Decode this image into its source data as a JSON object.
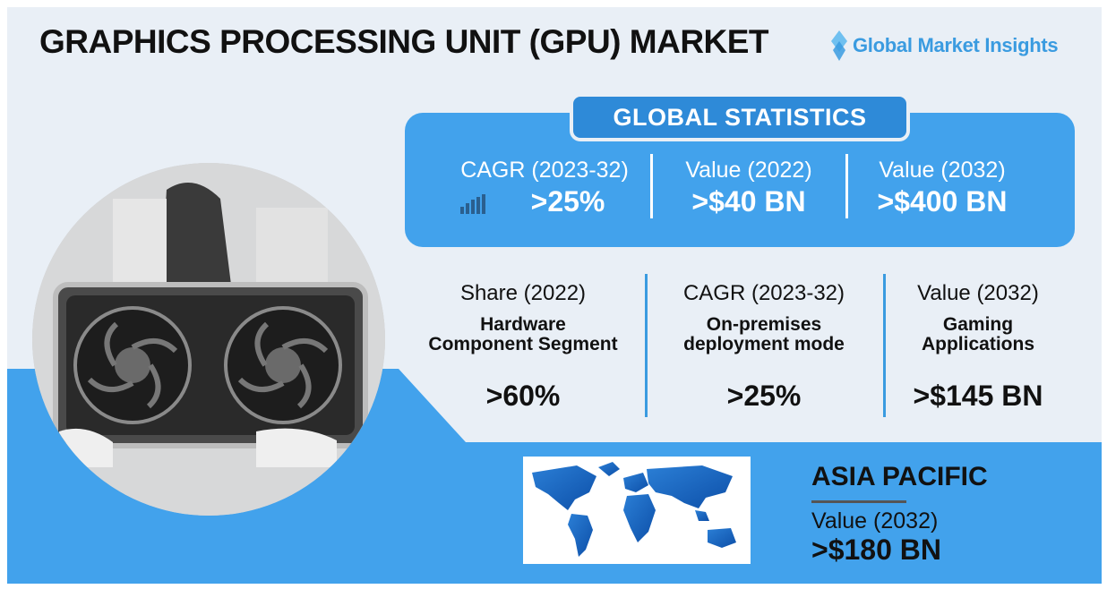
{
  "header": {
    "title": "GRAPHICS PROCESSING UNIT (GPU) MARKET",
    "logo_text": "Global Market Insights",
    "logo_icon": "diamond-logo-icon"
  },
  "global_statistics": {
    "heading": "GLOBAL STATISTICS",
    "items": [
      {
        "label": "CAGR (2023-32)",
        "value": ">25%",
        "icon": "bar-chart-icon"
      },
      {
        "label": "Value (2022)",
        "value": ">$40 BN"
      },
      {
        "label": "Value (2032)",
        "value": ">$400 BN"
      }
    ]
  },
  "segments": [
    {
      "label": "Share (2022)",
      "line1": "Hardware",
      "line2": "Component Segment",
      "value": ">60%"
    },
    {
      "label": "CAGR (2023-32)",
      "line1": "On-premises",
      "line2": "deployment mode",
      "value": ">25%"
    },
    {
      "label": "Value (2032)",
      "line1": "Gaming",
      "line2": "Applications",
      "value": ">$145 BN"
    }
  ],
  "region": {
    "title": "ASIA PACIFIC",
    "label": "Value (2032)",
    "value": ">$180 BN"
  },
  "colors": {
    "accent_blue": "#42a2ec",
    "tab_blue": "#2e8ad8",
    "background_light": "#e9eff6",
    "text_dark": "#111111"
  }
}
